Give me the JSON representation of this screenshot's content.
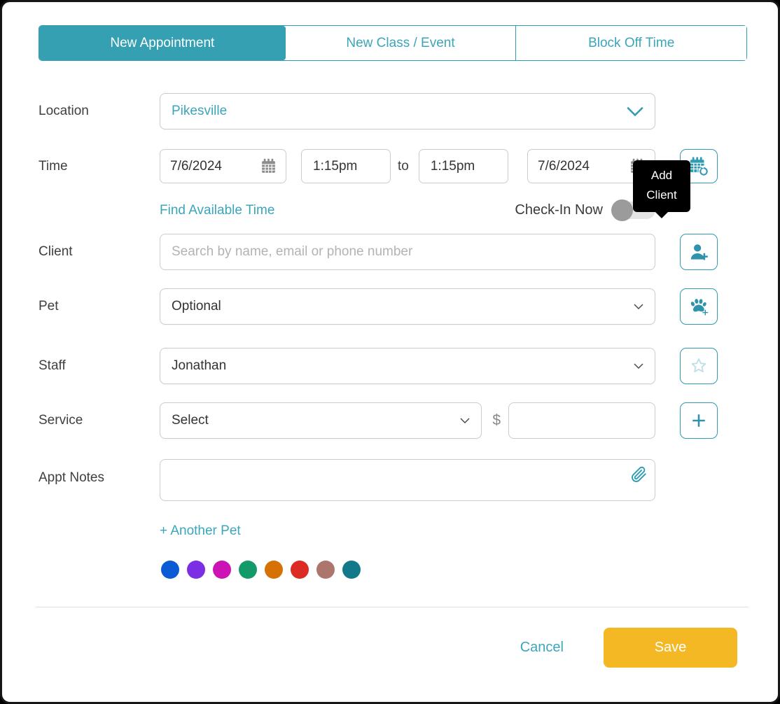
{
  "theme": {
    "accent": "#35a0b2",
    "accent_text": "#3ba6ba",
    "save_button_bg": "#f5b825",
    "tooltip_bg": "#000000",
    "tooltip_text": "#ffffff"
  },
  "tabs": [
    {
      "label": "New Appointment",
      "active": true
    },
    {
      "label": "New Class / Event",
      "active": false
    },
    {
      "label": "Block Off Time",
      "active": false
    }
  ],
  "location": {
    "label": "Location",
    "value": "Pikesville"
  },
  "time": {
    "label": "Time",
    "start_date": "7/6/2024",
    "start_time": "1:15pm",
    "to": "to",
    "end_time": "1:15pm",
    "end_date": "7/6/2024"
  },
  "links": {
    "find_available_time": "Find Available Time",
    "another_pet": "+ Another Pet"
  },
  "check_in": {
    "label": "Check-In Now",
    "state": "off"
  },
  "tooltip": {
    "text": "Add Client"
  },
  "client": {
    "label": "Client",
    "placeholder": "Search by name, email or phone number",
    "value": ""
  },
  "pet": {
    "label": "Pet",
    "value": "Optional"
  },
  "staff": {
    "label": "Staff",
    "value": "Jonathan"
  },
  "service": {
    "label": "Service",
    "value": "Select",
    "currency": "$",
    "price": ""
  },
  "appt_notes": {
    "label": "Appt Notes",
    "value": ""
  },
  "pet_colors": [
    "#0d5bd4",
    "#7b2ee3",
    "#cc14b4",
    "#129b68",
    "#d67106",
    "#dc2b23",
    "#ad766c",
    "#11798a"
  ],
  "icons": {
    "start_date": "calendar-icon",
    "end_date": "calendar-icon",
    "recurring": "calendar-repeat-icon",
    "add_client": "person-plus-icon",
    "add_pet": "paw-plus-icon",
    "preferred_staff": "star-icon",
    "add_service": "plus-icon",
    "attachment": "paperclip-icon",
    "location_dropdown": "chevron-down-icon",
    "selects": "chevron-down-icon"
  },
  "footer": {
    "cancel": "Cancel",
    "save": "Save"
  }
}
